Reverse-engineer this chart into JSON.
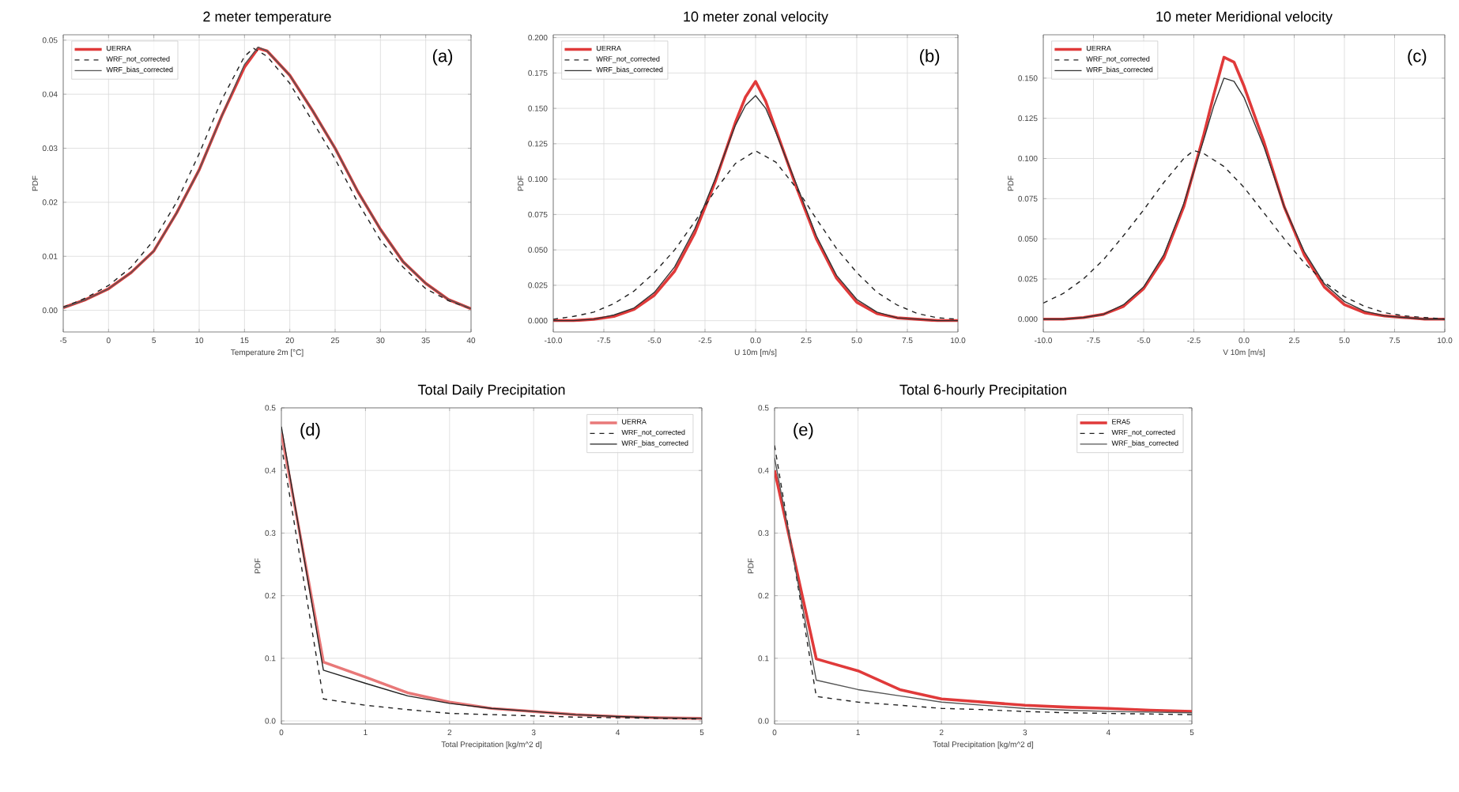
{
  "chart_data": [
    {
      "type": "line",
      "title": "2 meter temperature",
      "xlabel": "Temperature 2m [°C]",
      "ylabel": "PDF",
      "annotations": [
        "(a)"
      ],
      "grid": true,
      "legend": "top left",
      "marker": "none",
      "xlim": [
        -5,
        40
      ],
      "xticks": [
        -5,
        0,
        5,
        10,
        15,
        20,
        25,
        30,
        35,
        40
      ],
      "ylim": [
        -0.004,
        0.051
      ],
      "yticks": [
        {
          "value": 0,
          "label": "0.00"
        },
        {
          "value": 0.01,
          "label": "0.01"
        },
        {
          "value": 0.02,
          "label": "0.02"
        },
        {
          "value": 0.03,
          "label": "0.03"
        },
        {
          "value": 0.04,
          "label": "0.04"
        },
        {
          "value": 0.05,
          "label": "0.05"
        }
      ],
      "series": [
        {
          "name": "UERRA",
          "color": "#e03a3a",
          "line_style": "solid",
          "x": [
            -5,
            -2.5,
            0,
            2.5,
            5,
            7.5,
            10,
            12.5,
            15,
            16.5,
            17.5,
            20,
            22.5,
            25,
            27.5,
            30,
            32.5,
            35,
            37.5,
            40
          ],
          "values": [
            0.0005,
            0.002,
            0.004,
            0.007,
            0.011,
            0.018,
            0.026,
            0.036,
            0.045,
            0.0485,
            0.048,
            0.0435,
            0.037,
            0.03,
            0.022,
            0.015,
            0.009,
            0.005,
            0.002,
            0.0003
          ]
        },
        {
          "name": "WRF_not_corrected",
          "color": "#222222",
          "line_style": "dashed",
          "x": [
            -5,
            -2.5,
            0,
            2.5,
            5,
            7.5,
            10,
            12.5,
            15,
            16,
            17.5,
            20,
            22.5,
            25,
            27.5,
            30,
            32.5,
            35,
            37.5,
            40
          ],
          "values": [
            0.0006,
            0.0023,
            0.0046,
            0.008,
            0.013,
            0.02,
            0.029,
            0.039,
            0.047,
            0.0485,
            0.047,
            0.042,
            0.035,
            0.028,
            0.02,
            0.013,
            0.008,
            0.004,
            0.0018,
            0.0003
          ]
        },
        {
          "name": "WRF_bias_corrected",
          "color": "#555555",
          "line_style": "solid",
          "x": [
            -5,
            -2.5,
            0,
            2.5,
            5,
            7.5,
            10,
            12.5,
            15,
            16.5,
            17.5,
            20,
            22.5,
            25,
            27.5,
            30,
            32.5,
            35,
            37.5,
            40
          ],
          "values": [
            0.0005,
            0.002,
            0.004,
            0.007,
            0.011,
            0.018,
            0.026,
            0.036,
            0.0455,
            0.0487,
            0.048,
            0.0435,
            0.037,
            0.03,
            0.022,
            0.015,
            0.009,
            0.005,
            0.002,
            0.0003
          ]
        }
      ]
    },
    {
      "type": "line",
      "title": "10 meter zonal velocity",
      "xlabel": "U 10m [m/s]",
      "ylabel": "PDF",
      "annotations": [
        "(b)"
      ],
      "grid": true,
      "legend": "top left",
      "marker": "none",
      "xlim": [
        -10,
        10
      ],
      "xticks": [
        {
          "value": -10,
          "label": "-10.0"
        },
        {
          "value": -7.5,
          "label": "-7.5"
        },
        {
          "value": -5,
          "label": "-5.0"
        },
        {
          "value": -2.5,
          "label": "-2.5"
        },
        {
          "value": 0,
          "label": "0.0"
        },
        {
          "value": 2.5,
          "label": "2.5"
        },
        {
          "value": 5,
          "label": "5.0"
        },
        {
          "value": 7.5,
          "label": "7.5"
        },
        {
          "value": 10,
          "label": "10.0"
        }
      ],
      "ylim": [
        -0.008,
        0.202
      ],
      "yticks": [
        {
          "value": 0,
          "label": "0.000"
        },
        {
          "value": 0.025,
          "label": "0.025"
        },
        {
          "value": 0.05,
          "label": "0.050"
        },
        {
          "value": 0.075,
          "label": "0.075"
        },
        {
          "value": 0.1,
          "label": "0.100"
        },
        {
          "value": 0.125,
          "label": "0.125"
        },
        {
          "value": 0.15,
          "label": "0.150"
        },
        {
          "value": 0.175,
          "label": "0.175"
        },
        {
          "value": 0.2,
          "label": "0.200"
        }
      ],
      "series": [
        {
          "name": "UERRA",
          "color": "#e03a3a",
          "line_style": "solid",
          "x": [
            -10,
            -9,
            -8,
            -7,
            -6,
            -5,
            -4,
            -3,
            -2,
            -1,
            -0.5,
            0,
            0.5,
            1,
            2,
            3,
            4,
            5,
            6,
            7,
            8,
            9,
            10
          ],
          "values": [
            0,
            0,
            0.001,
            0.003,
            0.008,
            0.018,
            0.035,
            0.062,
            0.098,
            0.14,
            0.158,
            0.169,
            0.155,
            0.135,
            0.095,
            0.058,
            0.03,
            0.013,
            0.005,
            0.002,
            0.001,
            0,
            0
          ]
        },
        {
          "name": "WRF_not_corrected",
          "color": "#222222",
          "line_style": "dashed",
          "x": [
            -10,
            -9,
            -8,
            -7,
            -6,
            -5,
            -4,
            -3,
            -2,
            -1,
            0,
            1,
            2,
            3,
            4,
            5,
            6,
            7,
            8,
            9,
            10
          ],
          "values": [
            0.001,
            0.003,
            0.006,
            0.012,
            0.021,
            0.034,
            0.05,
            0.07,
            0.092,
            0.111,
            0.12,
            0.112,
            0.094,
            0.072,
            0.051,
            0.034,
            0.02,
            0.011,
            0.005,
            0.002,
            0.001
          ]
        },
        {
          "name": "WRF_bias_corrected",
          "color": "#333333",
          "line_style": "solid",
          "x": [
            -10,
            -9,
            -8,
            -7,
            -6,
            -5,
            -4,
            -3,
            -2,
            -1,
            -0.5,
            0,
            0.5,
            1,
            2,
            3,
            4,
            5,
            6,
            7,
            8,
            9,
            10
          ],
          "values": [
            0,
            0,
            0.001,
            0.004,
            0.009,
            0.02,
            0.038,
            0.065,
            0.1,
            0.138,
            0.152,
            0.159,
            0.15,
            0.133,
            0.097,
            0.06,
            0.032,
            0.015,
            0.006,
            0.002,
            0.001,
            0,
            0
          ]
        }
      ]
    },
    {
      "type": "line",
      "title": "10 meter Meridional velocity",
      "xlabel": "V 10m [m/s]",
      "ylabel": "PDF",
      "annotations": [
        "(c)"
      ],
      "grid": true,
      "legend": "top left",
      "marker": "none",
      "xlim": [
        -10,
        10
      ],
      "xticks": [
        {
          "value": -10,
          "label": "-10.0"
        },
        {
          "value": -7.5,
          "label": "-7.5"
        },
        {
          "value": -5,
          "label": "-5.0"
        },
        {
          "value": -2.5,
          "label": "-2.5"
        },
        {
          "value": 0,
          "label": "0.0"
        },
        {
          "value": 2.5,
          "label": "2.5"
        },
        {
          "value": 5,
          "label": "5.0"
        },
        {
          "value": 7.5,
          "label": "7.5"
        },
        {
          "value": 10,
          "label": "10.0"
        }
      ],
      "ylim": [
        -0.008,
        0.177
      ],
      "yticks": [
        {
          "value": 0,
          "label": "0.000"
        },
        {
          "value": 0.025,
          "label": "0.025"
        },
        {
          "value": 0.05,
          "label": "0.050"
        },
        {
          "value": 0.075,
          "label": "0.075"
        },
        {
          "value": 0.1,
          "label": "0.100"
        },
        {
          "value": 0.125,
          "label": "0.125"
        },
        {
          "value": 0.15,
          "label": "0.150"
        }
      ],
      "series": [
        {
          "name": "UERRA",
          "color": "#e03a3a",
          "line_style": "solid",
          "x": [
            -10,
            -9,
            -8,
            -7,
            -6,
            -5,
            -4,
            -3,
            -2,
            -1.5,
            -1,
            -0.5,
            0,
            1,
            2,
            3,
            4,
            5,
            6,
            7,
            8,
            9,
            10
          ],
          "values": [
            0,
            0,
            0.001,
            0.003,
            0.008,
            0.019,
            0.038,
            0.07,
            0.115,
            0.14,
            0.163,
            0.16,
            0.145,
            0.11,
            0.07,
            0.04,
            0.02,
            0.009,
            0.004,
            0.002,
            0.001,
            0,
            0
          ]
        },
        {
          "name": "WRF_not_corrected",
          "color": "#222222",
          "line_style": "dashed",
          "x": [
            -10,
            -9,
            -8,
            -7,
            -6,
            -5,
            -4,
            -3,
            -2.5,
            -2,
            -1,
            0,
            1,
            2,
            3,
            4,
            5,
            6,
            7,
            8,
            9,
            10
          ],
          "values": [
            0.01,
            0.016,
            0.025,
            0.037,
            0.052,
            0.068,
            0.085,
            0.1,
            0.105,
            0.103,
            0.095,
            0.082,
            0.066,
            0.05,
            0.035,
            0.023,
            0.014,
            0.008,
            0.004,
            0.002,
            0.001,
            0
          ]
        },
        {
          "name": "WRF_bias_corrected",
          "color": "#333333",
          "line_style": "solid",
          "x": [
            -10,
            -9,
            -8,
            -7,
            -6,
            -5,
            -4,
            -3,
            -2,
            -1.5,
            -1,
            -0.5,
            0,
            1,
            2,
            3,
            4,
            5,
            6,
            7,
            8,
            9,
            10
          ],
          "values": [
            0,
            0,
            0.001,
            0.003,
            0.009,
            0.02,
            0.04,
            0.072,
            0.112,
            0.133,
            0.15,
            0.148,
            0.138,
            0.107,
            0.07,
            0.042,
            0.022,
            0.011,
            0.005,
            0.002,
            0.001,
            0,
            0
          ]
        }
      ]
    },
    {
      "type": "line",
      "title": "Total Daily Precipitation",
      "xlabel": "Total Precipitation [kg/m^2 d]",
      "ylabel": "PDF",
      "annotations": [
        "(d)"
      ],
      "grid": true,
      "legend": "top right",
      "marker": "none",
      "xlim": [
        0,
        5
      ],
      "xticks": [
        0,
        1,
        2,
        3,
        4,
        5
      ],
      "ylim": [
        -0.005,
        0.5
      ],
      "yticks": [
        {
          "value": 0,
          "label": "0.0"
        },
        0.1,
        0.2,
        0.3,
        0.4,
        0.5
      ],
      "series": [
        {
          "name": "UERRA",
          "color": "#e87878",
          "line_style": "solid",
          "x": [
            0,
            0.5,
            1,
            1.5,
            2,
            2.5,
            3,
            3.5,
            4,
            4.5,
            5
          ],
          "values": [
            0.46,
            0.094,
            0.07,
            0.045,
            0.03,
            0.02,
            0.015,
            0.01,
            0.007,
            0.005,
            0.004
          ]
        },
        {
          "name": "WRF_not_corrected",
          "color": "#222222",
          "line_style": "dashed",
          "x": [
            0,
            0.5,
            1,
            1.5,
            2,
            2.5,
            3,
            3.5,
            4,
            4.5,
            5
          ],
          "values": [
            0.44,
            0.035,
            0.025,
            0.018,
            0.012,
            0.01,
            0.008,
            0.006,
            0.005,
            0.004,
            0.003
          ]
        },
        {
          "name": "WRF_bias_corrected",
          "color": "#222222",
          "line_style": "solid",
          "x": [
            0,
            0.5,
            1,
            1.5,
            2,
            2.5,
            3,
            3.5,
            4,
            4.5,
            5
          ],
          "values": [
            0.47,
            0.081,
            0.06,
            0.04,
            0.028,
            0.02,
            0.015,
            0.01,
            0.007,
            0.005,
            0.004
          ]
        }
      ]
    },
    {
      "type": "line",
      "title": "Total 6-hourly Precipitation",
      "xlabel": "Total Precipitation [kg/m^2 d]",
      "ylabel": "PDF",
      "annotations": [
        "(e)"
      ],
      "grid": true,
      "legend": "top right",
      "marker": "none",
      "xlim": [
        0,
        5
      ],
      "xticks": [
        0,
        1,
        2,
        3,
        4,
        5
      ],
      "ylim": [
        -0.005,
        0.5
      ],
      "yticks": [
        {
          "value": 0,
          "label": "0.0"
        },
        0.1,
        0.2,
        0.3,
        0.4,
        0.5
      ],
      "series": [
        {
          "name": "ERA5",
          "color": "#e03a3a",
          "line_style": "solid",
          "x": [
            0,
            0.5,
            1,
            1.5,
            2,
            2.5,
            3,
            3.5,
            4,
            4.5,
            5
          ],
          "values": [
            0.4,
            0.099,
            0.08,
            0.05,
            0.035,
            0.03,
            0.025,
            0.022,
            0.02,
            0.017,
            0.015
          ]
        },
        {
          "name": "WRF_not_corrected",
          "color": "#222222",
          "line_style": "dashed",
          "x": [
            0,
            0.5,
            1,
            1.5,
            2,
            2.5,
            3,
            3.5,
            4,
            4.5,
            5
          ],
          "values": [
            0.44,
            0.039,
            0.03,
            0.025,
            0.02,
            0.018,
            0.015,
            0.013,
            0.012,
            0.011,
            0.01
          ]
        },
        {
          "name": "WRF_bias_corrected",
          "color": "#555555",
          "line_style": "solid",
          "x": [
            0,
            0.5,
            1,
            1.5,
            2,
            2.5,
            3,
            3.5,
            4,
            4.5,
            5
          ],
          "values": [
            0.42,
            0.065,
            0.05,
            0.04,
            0.03,
            0.025,
            0.02,
            0.017,
            0.015,
            0.014,
            0.013
          ]
        }
      ]
    }
  ]
}
